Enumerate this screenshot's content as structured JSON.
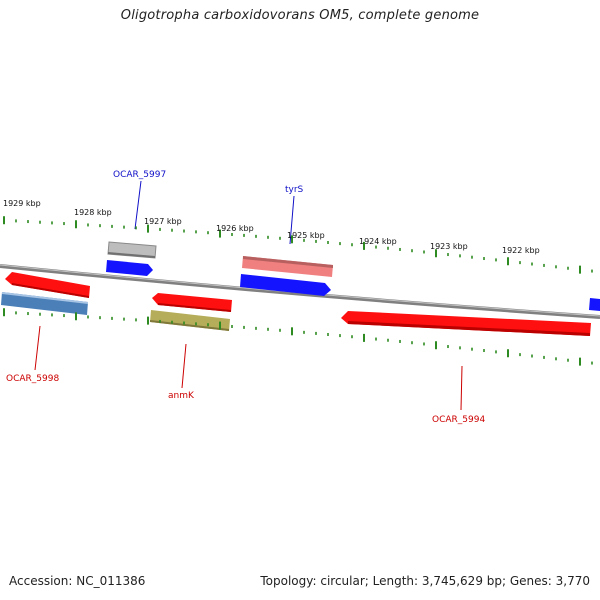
{
  "title": "Oligotropha carboxidovorans OM5, complete genome",
  "footer": {
    "accession": "Accession: NC_011386",
    "topology": "Topology: circular; Length: 3,745,629 bp; Genes: 3,770"
  },
  "colors": {
    "backbone": "#8c8c8c",
    "ticks": "#2e8b22",
    "label_blue": "#1010c8",
    "label_red": "#cc0000"
  },
  "scale_labels": [
    "1929 kbp",
    "1928 kbp",
    "1927 kbp",
    "1926 kbp",
    "1925 kbp",
    "1924 kbp",
    "1923 kbp",
    "1922 kbp"
  ],
  "features": [
    {
      "name": "OCAR_5997",
      "color": "#bdbdbd",
      "label_color": "#1010c8"
    },
    {
      "name": "tyrS",
      "color": "#f08080",
      "label_color": "#1010c8"
    },
    {
      "name": "OCAR_5998",
      "color": "#ff1010",
      "label_color": "#cc0000"
    },
    {
      "name": "anmK",
      "color": "#ff1010",
      "label_color": "#cc0000"
    },
    {
      "name": "OCAR_5994",
      "color": "#ff1010",
      "label_color": "#cc0000"
    }
  ],
  "unlabeled_features": [
    {
      "color": "#1414ff"
    },
    {
      "color": "#1414ff"
    },
    {
      "color": "#1414ff"
    },
    {
      "color": "#4a7fb8"
    },
    {
      "color": "#b5ad5a"
    }
  ]
}
